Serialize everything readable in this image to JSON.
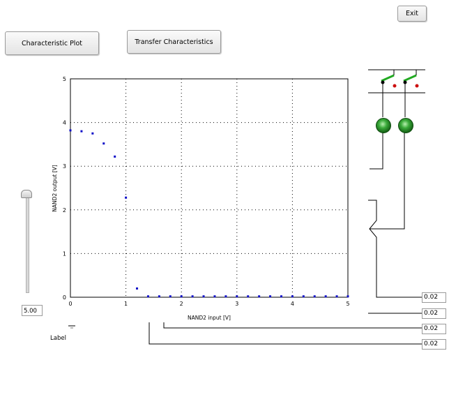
{
  "toolbar": {
    "exit_label": "Exit",
    "characteristic_plot_label": "Characteristic Plot",
    "transfer_characteristics_label": "Transfer Characteristics"
  },
  "chart_data": {
    "type": "scatter",
    "xlabel": "NAND2 input [V]",
    "ylabel": "NAND2 output [V]",
    "xlim": [
      0,
      5
    ],
    "ylim": [
      0,
      5
    ],
    "x_ticks": [
      "0",
      "1",
      "2",
      "3",
      "4",
      "5"
    ],
    "y_ticks": [
      "0",
      "1",
      "2",
      "3",
      "4",
      "5"
    ],
    "grid": true,
    "series": [
      {
        "color": "#1010c8",
        "points": [
          [
            0,
            3.82
          ],
          [
            0.2,
            3.8
          ],
          [
            0.4,
            3.75
          ],
          [
            0.6,
            3.52
          ],
          [
            0.8,
            3.22
          ],
          [
            1.0,
            2.28
          ],
          [
            1.2,
            0.2
          ],
          [
            1.4,
            0.02
          ],
          [
            1.6,
            0.02
          ],
          [
            1.8,
            0.02
          ],
          [
            2.0,
            0.02
          ],
          [
            2.2,
            0.02
          ],
          [
            2.4,
            0.02
          ],
          [
            2.6,
            0.02
          ],
          [
            2.8,
            0.02
          ],
          [
            3.0,
            0.02
          ],
          [
            3.2,
            0.02
          ],
          [
            3.4,
            0.02
          ],
          [
            3.6,
            0.02
          ],
          [
            3.8,
            0.02
          ],
          [
            4.0,
            0.02
          ],
          [
            4.2,
            0.02
          ],
          [
            4.4,
            0.02
          ],
          [
            4.6,
            0.02
          ],
          [
            4.8,
            0.02
          ],
          [
            5.0,
            0.02
          ]
        ]
      }
    ]
  },
  "slider": {
    "value": "5.00",
    "label": "Label"
  },
  "readouts": [
    "0.02",
    "0.02",
    "0.02",
    "0.02"
  ],
  "colors": {
    "led": "#2a9a2a",
    "switch": "#22aa22",
    "pin_black": "#000000",
    "pin_red": "#cc1111"
  }
}
